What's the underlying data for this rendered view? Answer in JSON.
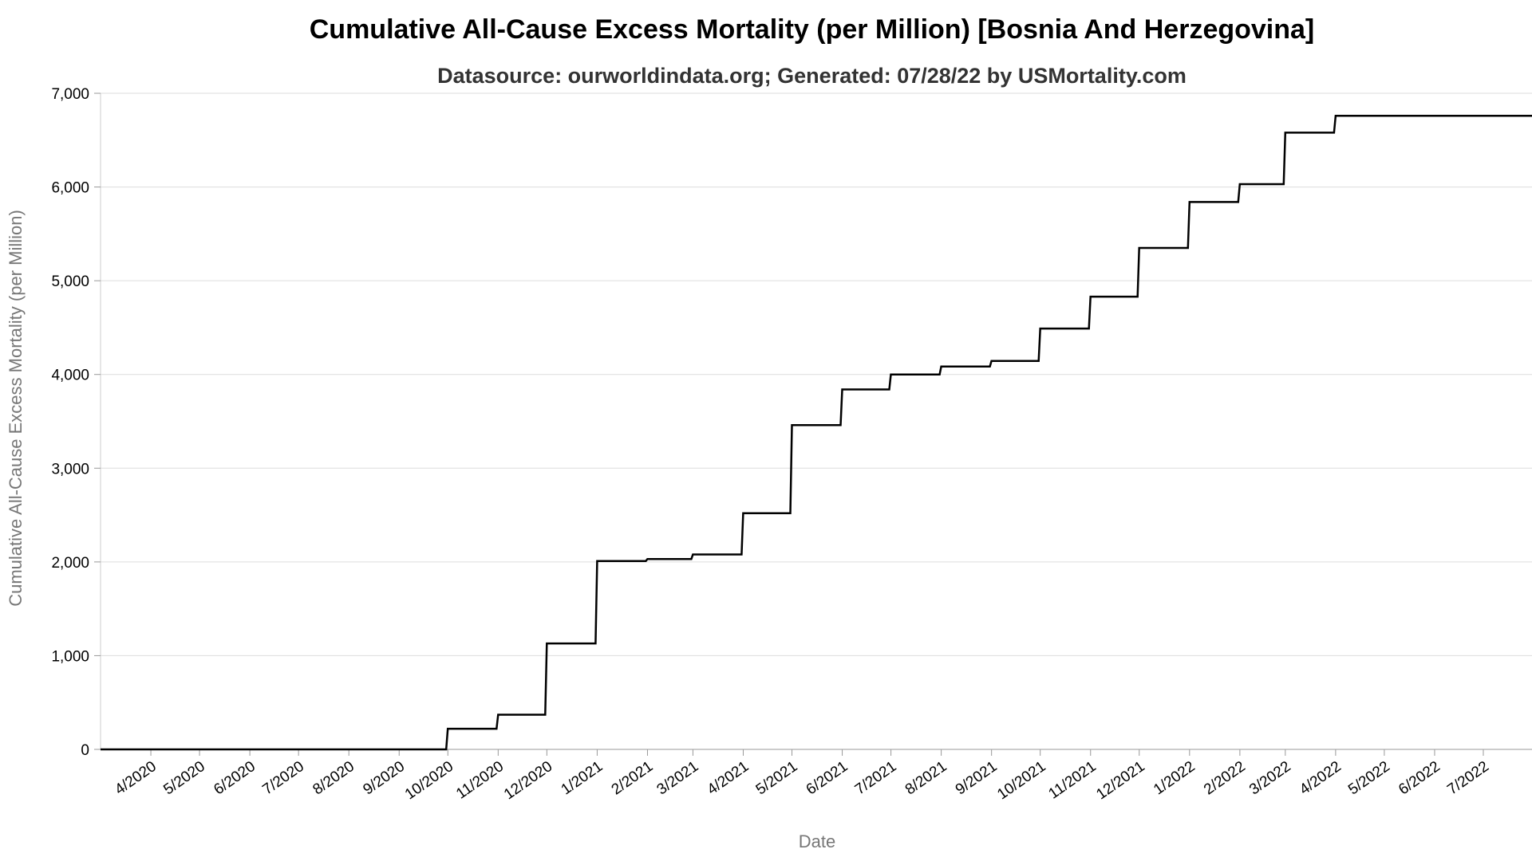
{
  "chart_data": {
    "type": "line",
    "line_shape": "step",
    "title": "Cumulative All-Cause Excess Mortality (per Million) [Bosnia And Herzegovina]",
    "subtitle": "Datasource: ourworldindata.org; Generated: 07/28/22 by USMortality.com",
    "xlabel": "Date",
    "ylabel": "Cumulative All-Cause Excess Mortality (per Million)",
    "ylim": [
      0,
      7000
    ],
    "yticks": [
      0,
      1000,
      2000,
      3000,
      4000,
      5000,
      6000,
      7000
    ],
    "ytick_labels": [
      "0",
      "1,000",
      "2,000",
      "3,000",
      "4,000",
      "5,000",
      "6,000",
      "7,000"
    ],
    "xlim": [
      "2020-03-01",
      "2022-07-31"
    ],
    "xticks": [
      "2020-04-01",
      "2020-05-01",
      "2020-06-01",
      "2020-07-01",
      "2020-08-01",
      "2020-09-01",
      "2020-10-01",
      "2020-11-01",
      "2020-12-01",
      "2021-01-01",
      "2021-02-01",
      "2021-03-01",
      "2021-04-01",
      "2021-05-01",
      "2021-06-01",
      "2021-07-01",
      "2021-08-01",
      "2021-09-01",
      "2021-10-01",
      "2021-11-01",
      "2021-12-01",
      "2022-01-01",
      "2022-02-01",
      "2022-03-01",
      "2022-04-01",
      "2022-05-01",
      "2022-06-01",
      "2022-07-01"
    ],
    "xtick_labels": [
      "4/2020",
      "5/2020",
      "6/2020",
      "7/2020",
      "8/2020",
      "9/2020",
      "10/2020",
      "11/2020",
      "12/2020",
      "1/2021",
      "2/2021",
      "3/2021",
      "4/2021",
      "5/2021",
      "6/2021",
      "7/2021",
      "8/2021",
      "9/2021",
      "10/2021",
      "11/2021",
      "12/2021",
      "1/2022",
      "2/2022",
      "3/2022",
      "4/2022",
      "5/2022",
      "6/2022",
      "7/2022"
    ],
    "grid": true,
    "legend": "none",
    "line_color": "#000000",
    "series": [
      {
        "x": [
          "2020-03-01",
          "2020-03-26",
          "2020-09-30",
          "2020-10-31",
          "2020-11-30",
          "2020-12-31",
          "2021-01-31",
          "2021-02-28",
          "2021-03-31",
          "2021-04-30",
          "2021-05-31",
          "2021-06-30",
          "2021-07-31",
          "2021-08-31",
          "2021-09-30",
          "2021-10-31",
          "2021-11-30",
          "2021-12-31",
          "2022-01-31",
          "2022-02-28",
          "2022-03-31",
          "2022-07-31"
        ],
        "y": [
          0,
          0,
          220,
          370,
          1130,
          2010,
          2030,
          2080,
          2520,
          3460,
          3840,
          4000,
          4085,
          4145,
          4490,
          4830,
          5350,
          5840,
          6030,
          6580,
          6760,
          6760
        ]
      }
    ]
  }
}
